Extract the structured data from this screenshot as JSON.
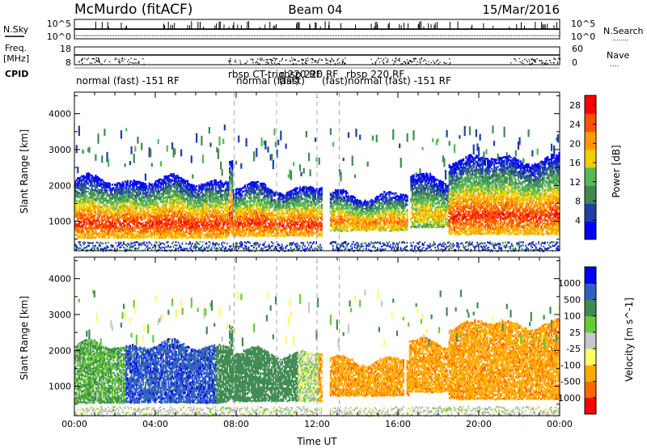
{
  "header": {
    "station": "McMurdo (fitACF)",
    "beam": "Beam 04",
    "date": "15/Mar/2016"
  },
  "strip_labels": {
    "nsky": "N.Sky",
    "nsearch": "N.Search",
    "nsearch_dots": "........",
    "freq_line1": "Freq.",
    "freq_line2": "[MHz]",
    "nave": "Nave",
    "nave_dots": "....",
    "cpid": "CPID"
  },
  "strip_ticks": {
    "noise_left": [
      "10^5",
      "10^0"
    ],
    "noise_right": [
      "10^5",
      "10^0"
    ],
    "freq_left": [
      "18",
      "8"
    ],
    "nave_right": [
      "60",
      "0"
    ]
  },
  "cpid_labels": [
    {
      "text": "normal (fast) -151 RF"
    },
    {
      "text": "rbsp CT-trig 220 RF"
    },
    {
      "text": "normal (fast)"
    },
    {
      "text": "rbsp 220 RF"
    },
    {
      "text": "(fast)"
    },
    {
      "text": "(fast)"
    },
    {
      "text": "rbsp 220 RF"
    },
    {
      "text": "normal (fast) -151 RF"
    }
  ],
  "colors": {
    "power_scale": [
      "#0000ff",
      "#1e3fa8",
      "#3e8a50",
      "#58b858",
      "#f0d000",
      "#ff9900",
      "#ff5000",
      "#ff0000"
    ],
    "velocity_scale": [
      "#ff0000",
      "#ff6600",
      "#ffaa00",
      "#ffff66",
      "#c8c8c8",
      "#66cc33",
      "#3e8a50",
      "#2f5fc0",
      "#0000ff"
    ],
    "ground_scatter": "#b4b4b4"
  },
  "chart_data": [
    {
      "type": "heatmap",
      "name": "power",
      "ylabel": "Slant Range [km]",
      "xlabel": "",
      "xlim": [
        "00:00",
        "24:00"
      ],
      "ylim": [
        180,
        4600
      ],
      "xticks": [
        "00:00",
        "04:00",
        "08:00",
        "12:00",
        "16:00",
        "20:00",
        "00:00"
      ],
      "yticks": [
        1000,
        2000,
        3000,
        4000
      ],
      "colorbar": {
        "label": "Power [dB]",
        "ticks": [
          4,
          8,
          12,
          16,
          20,
          24,
          28
        ],
        "range": [
          0,
          30
        ]
      },
      "scatter_bands": [
        {
          "t_start": 0.0,
          "t_end": 7.6,
          "r_low": 500,
          "r_high": 1900,
          "peak_db": 28
        },
        {
          "t_start": 7.8,
          "t_end": 12.3,
          "r_low": 550,
          "r_high": 1700,
          "peak_db": 28
        },
        {
          "t_start": 12.6,
          "t_end": 16.5,
          "r_low": 700,
          "r_high": 1500,
          "peak_db": 24
        },
        {
          "t_start": 16.5,
          "t_end": 18.5,
          "r_low": 800,
          "r_high": 2000,
          "peak_db": 20
        },
        {
          "t_start": 18.5,
          "t_end": 24.0,
          "r_low": 600,
          "r_high": 2500,
          "peak_db": 28
        }
      ],
      "grid": false
    },
    {
      "type": "heatmap",
      "name": "velocity",
      "ylabel": "Slant Range [km]",
      "xlabel": "Time UT",
      "xlim": [
        "00:00",
        "24:00"
      ],
      "ylim": [
        180,
        4600
      ],
      "xticks": [
        "00:00",
        "04:00",
        "08:00",
        "12:00",
        "16:00",
        "20:00",
        "00:00"
      ],
      "yticks": [
        1000,
        2000,
        3000,
        4000
      ],
      "colorbar": {
        "label": "Velocity [m s^-1]",
        "ticks": [
          1000,
          500,
          100,
          25,
          -25,
          -100,
          -500,
          -1000
        ]
      },
      "velocity_regions": [
        {
          "t_start": 0.0,
          "t_end": 2.5,
          "velocity_ms": 100
        },
        {
          "t_start": 2.5,
          "t_end": 7.0,
          "velocity_ms": 800
        },
        {
          "t_start": 7.0,
          "t_end": 11.0,
          "velocity_ms": 300
        },
        {
          "t_start": 11.0,
          "t_end": 12.0,
          "velocity_ms": 0
        },
        {
          "t_start": 12.0,
          "t_end": 24.0,
          "velocity_ms": -400
        }
      ],
      "grid": false
    }
  ]
}
